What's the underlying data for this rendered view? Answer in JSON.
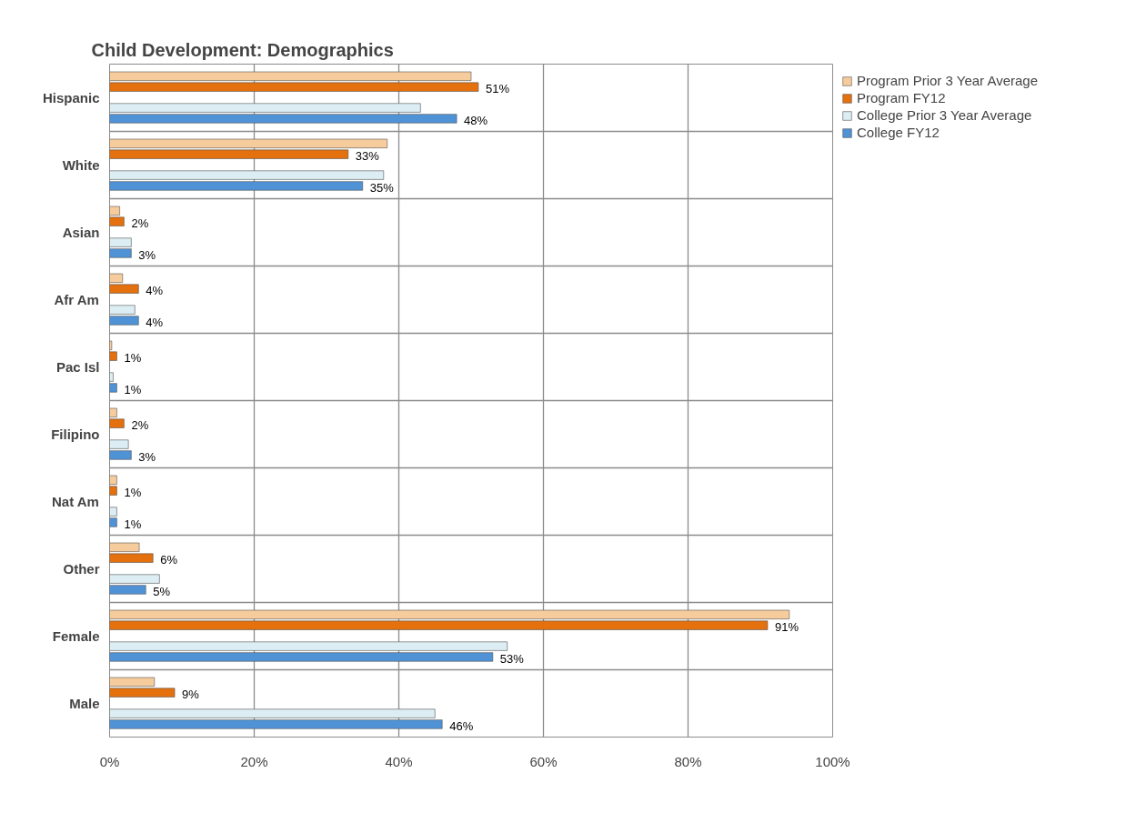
{
  "chart_data": {
    "type": "bar",
    "orientation": "horizontal",
    "title": "Child Development: Demographics",
    "categories": [
      "Hispanic",
      "White",
      "Asian",
      "Afr Am",
      "Pac Isl",
      "Filipino",
      "Nat Am",
      "Other",
      "Female",
      "Male"
    ],
    "series": [
      {
        "name": "Program Prior 3 Year Average",
        "color": "#f7cc9c",
        "values": [
          50,
          38.4,
          1.4,
          1.8,
          0.3,
          1,
          1,
          4.1,
          94,
          6.2
        ]
      },
      {
        "name": "Program FY12",
        "color": "#e4700e",
        "values": [
          51,
          33,
          2,
          4,
          1,
          2,
          1,
          6,
          91,
          9
        ],
        "value_labels": [
          "51%",
          "33%",
          "2%",
          "4%",
          "1%",
          "2%",
          "1%",
          "6%",
          "91%",
          "9%"
        ]
      },
      {
        "name": "College Prior 3 Year Average",
        "color": "#dcedf3",
        "values": [
          43,
          37.9,
          3,
          3.5,
          0.5,
          2.6,
          1,
          6.9,
          55,
          45
        ]
      },
      {
        "name": "College FY12",
        "color": "#4f92d6",
        "values": [
          48,
          35,
          3,
          4,
          1,
          3,
          1,
          5,
          53,
          46
        ],
        "value_labels": [
          "48%",
          "35%",
          "3%",
          "4%",
          "1%",
          "3%",
          "1%",
          "5%",
          "53%",
          "46%"
        ]
      }
    ],
    "xlim": [
      0,
      100
    ],
    "xticks": [
      {
        "value": 0,
        "label": "0%"
      },
      {
        "value": 20,
        "label": "20%"
      },
      {
        "value": 40,
        "label": "40%"
      },
      {
        "value": 60,
        "label": "60%"
      },
      {
        "value": 80,
        "label": "80%"
      },
      {
        "value": 100,
        "label": "100%"
      }
    ],
    "grid": true,
    "legend": "top right"
  }
}
